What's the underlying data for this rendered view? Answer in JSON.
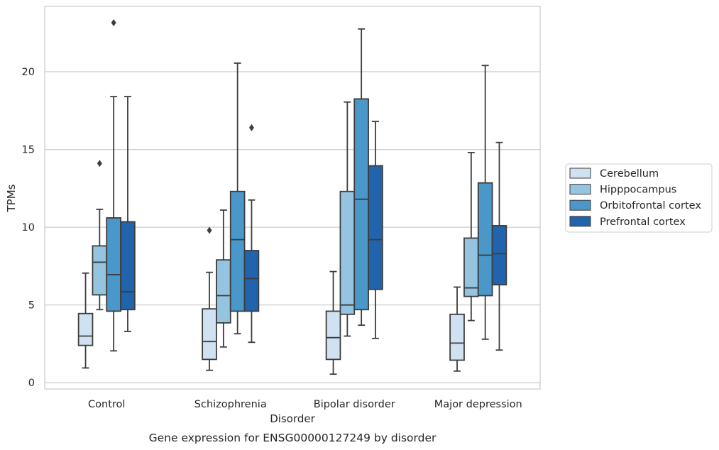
{
  "chart_data": {
    "type": "box",
    "caption": "Gene expression for ENSG00000127249 by disorder",
    "xlabel": "Disorder",
    "ylabel": "TPMs",
    "categories": [
      "Control",
      "Schizophrenia",
      "Bipolar disorder",
      "Major depression"
    ],
    "ylim": [
      -0.4,
      24.2
    ],
    "yticks": [
      0,
      5,
      10,
      15,
      20
    ],
    "grid": "horizontal",
    "legend_position": "right",
    "series": [
      {
        "name": "Cerebellum",
        "color": "#d0e1f2",
        "boxes": [
          {
            "whisker_low": 0.95,
            "q1": 2.4,
            "median": 3.0,
            "q3": 4.45,
            "whisker_high": 7.05,
            "outliers": []
          },
          {
            "whisker_low": 0.8,
            "q1": 1.5,
            "median": 2.65,
            "q3": 4.75,
            "whisker_high": 7.1,
            "outliers": [
              9.8
            ]
          },
          {
            "whisker_low": 0.55,
            "q1": 1.5,
            "median": 2.9,
            "q3": 4.6,
            "whisker_high": 7.15,
            "outliers": []
          },
          {
            "whisker_low": 0.75,
            "q1": 1.45,
            "median": 2.55,
            "q3": 4.4,
            "whisker_high": 6.15,
            "outliers": []
          }
        ]
      },
      {
        "name": "Hipppocampus",
        "color": "#94c4df",
        "boxes": [
          {
            "whisker_low": 4.7,
            "q1": 5.65,
            "median": 7.75,
            "q3": 8.8,
            "whisker_high": 11.15,
            "outliers": [
              14.1
            ]
          },
          {
            "whisker_low": 2.3,
            "q1": 3.85,
            "median": 5.6,
            "q3": 7.9,
            "whisker_high": 11.1,
            "outliers": []
          },
          {
            "whisker_low": 3.0,
            "q1": 4.4,
            "median": 5.0,
            "q3": 12.3,
            "whisker_high": 18.05,
            "outliers": []
          },
          {
            "whisker_low": 4.0,
            "q1": 5.55,
            "median": 6.1,
            "q3": 9.3,
            "whisker_high": 14.8,
            "outliers": []
          }
        ]
      },
      {
        "name": "Orbitofrontal cortex",
        "color": "#4a98c9",
        "boxes": [
          {
            "whisker_low": 2.05,
            "q1": 4.6,
            "median": 6.95,
            "q3": 10.6,
            "whisker_high": 18.4,
            "outliers": [
              23.15
            ]
          },
          {
            "whisker_low": 3.15,
            "q1": 4.6,
            "median": 9.2,
            "q3": 12.3,
            "whisker_high": 20.55,
            "outliers": []
          },
          {
            "whisker_low": 3.7,
            "q1": 4.7,
            "median": 11.8,
            "q3": 18.25,
            "whisker_high": 22.75,
            "outliers": []
          },
          {
            "whisker_low": 2.8,
            "q1": 5.6,
            "median": 8.2,
            "q3": 12.85,
            "whisker_high": 20.4,
            "outliers": []
          }
        ]
      },
      {
        "name": "Prefrontal cortex",
        "color": "#2164ab",
        "boxes": [
          {
            "whisker_low": 3.3,
            "q1": 4.7,
            "median": 5.85,
            "q3": 10.35,
            "whisker_high": 18.4,
            "outliers": []
          },
          {
            "whisker_low": 2.6,
            "q1": 4.6,
            "median": 6.7,
            "q3": 8.5,
            "whisker_high": 11.75,
            "outliers": [
              16.4
            ]
          },
          {
            "whisker_low": 2.85,
            "q1": 6.0,
            "median": 9.2,
            "q3": 13.95,
            "whisker_high": 16.8,
            "outliers": []
          },
          {
            "whisker_low": 2.1,
            "q1": 6.3,
            "median": 8.3,
            "q3": 10.1,
            "whisker_high": 15.45,
            "outliers": []
          }
        ]
      }
    ]
  }
}
